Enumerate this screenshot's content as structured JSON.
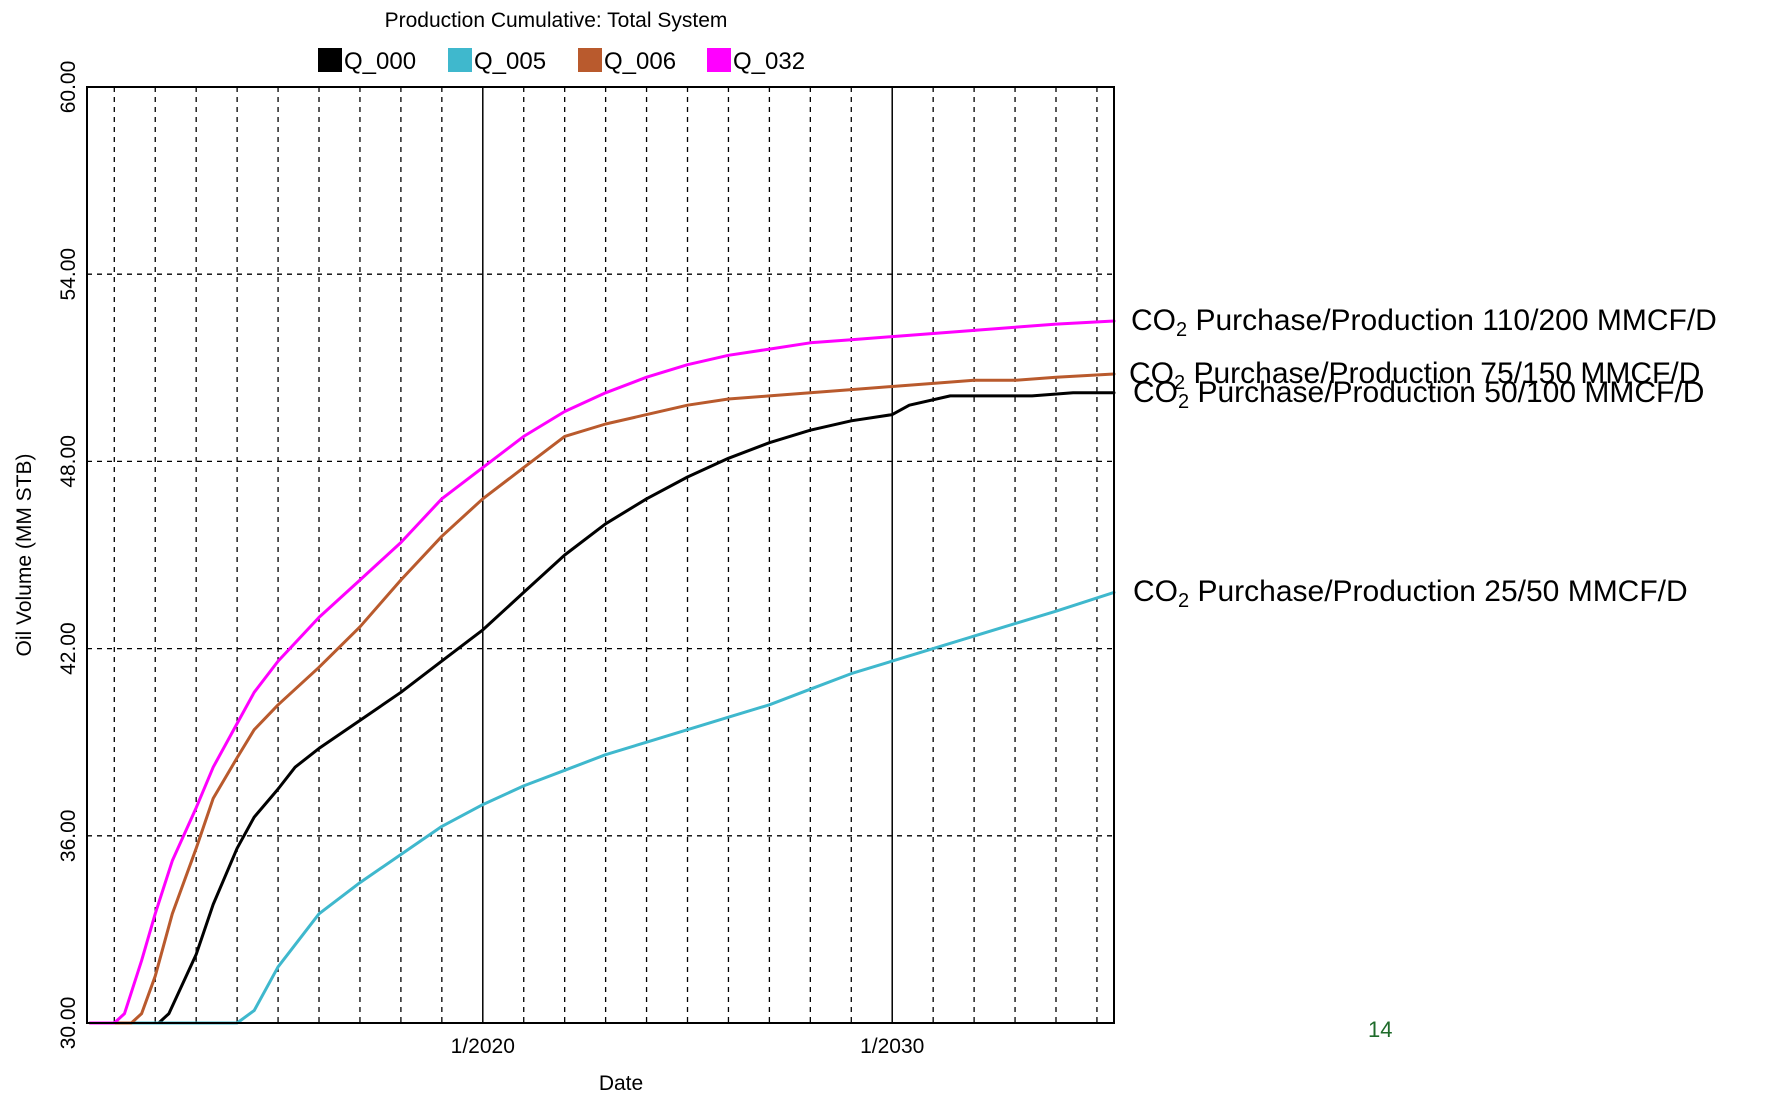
{
  "chart_data": {
    "type": "line",
    "title": "Production Cumulative: Total System",
    "xlabel": "Date",
    "ylabel": "Oil Volume (MM STB)",
    "xlim": [
      "2010-05",
      "2035-06"
    ],
    "ylim": [
      30,
      60
    ],
    "y_ticks": [
      "30.00",
      "36.00",
      "42.00",
      "48.00",
      "54.00",
      "60.00"
    ],
    "x_tick_labels": [
      {
        "date": "2020-01",
        "label": "1/2020"
      },
      {
        "date": "2030-01",
        "label": "1/2030"
      }
    ],
    "grid": true,
    "legend_position": "top",
    "series": [
      {
        "name": "Q_000",
        "color": "#000000",
        "points": [
          [
            "2010-06",
            30.0
          ],
          [
            "2011-01",
            30.0
          ],
          [
            "2012-02",
            30.0
          ],
          [
            "2012-05",
            30.3
          ],
          [
            "2013-01",
            32.2
          ],
          [
            "2013-06",
            33.8
          ],
          [
            "2014-01",
            35.6
          ],
          [
            "2014-06",
            36.6
          ],
          [
            "2015-01",
            37.5
          ],
          [
            "2015-06",
            38.2
          ],
          [
            "2016-01",
            38.8
          ],
          [
            "2017-01",
            39.7
          ],
          [
            "2018-01",
            40.6
          ],
          [
            "2019-01",
            41.6
          ],
          [
            "2020-01",
            42.6
          ],
          [
            "2021-01",
            43.8
          ],
          [
            "2022-01",
            45.0
          ],
          [
            "2023-01",
            46.0
          ],
          [
            "2024-01",
            46.8
          ],
          [
            "2025-01",
            47.5
          ],
          [
            "2026-01",
            48.1
          ],
          [
            "2027-01",
            48.6
          ],
          [
            "2028-01",
            49.0
          ],
          [
            "2029-01",
            49.3
          ],
          [
            "2030-01",
            49.5
          ],
          [
            "2030-06",
            49.8
          ],
          [
            "2031-06",
            50.1
          ],
          [
            "2032-06",
            50.1
          ],
          [
            "2033-06",
            50.1
          ],
          [
            "2034-06",
            50.2
          ],
          [
            "2035-06",
            50.2
          ]
        ]
      },
      {
        "name": "Q_005",
        "color": "#3fb8cd",
        "points": [
          [
            "2010-06",
            30.0
          ],
          [
            "2012-01",
            30.0
          ],
          [
            "2014-01",
            30.0
          ],
          [
            "2014-06",
            30.4
          ],
          [
            "2015-01",
            31.8
          ],
          [
            "2016-01",
            33.5
          ],
          [
            "2017-01",
            34.5
          ],
          [
            "2018-01",
            35.4
          ],
          [
            "2019-01",
            36.3
          ],
          [
            "2020-01",
            37.0
          ],
          [
            "2021-01",
            37.6
          ],
          [
            "2022-01",
            38.1
          ],
          [
            "2023-01",
            38.6
          ],
          [
            "2024-01",
            39.0
          ],
          [
            "2025-01",
            39.4
          ],
          [
            "2026-01",
            39.8
          ],
          [
            "2027-01",
            40.2
          ],
          [
            "2028-01",
            40.7
          ],
          [
            "2029-01",
            41.2
          ],
          [
            "2030-01",
            41.6
          ],
          [
            "2031-01",
            42.0
          ],
          [
            "2032-01",
            42.4
          ],
          [
            "2033-01",
            42.8
          ],
          [
            "2034-01",
            43.2
          ],
          [
            "2035-06",
            43.8
          ]
        ]
      },
      {
        "name": "Q_006",
        "color": "#b95a2d",
        "points": [
          [
            "2010-06",
            30.0
          ],
          [
            "2011-06",
            30.0
          ],
          [
            "2011-09",
            30.3
          ],
          [
            "2012-01",
            31.5
          ],
          [
            "2012-06",
            33.5
          ],
          [
            "2013-01",
            35.6
          ],
          [
            "2013-06",
            37.2
          ],
          [
            "2014-01",
            38.5
          ],
          [
            "2014-06",
            39.4
          ],
          [
            "2015-01",
            40.2
          ],
          [
            "2016-01",
            41.4
          ],
          [
            "2017-01",
            42.7
          ],
          [
            "2018-01",
            44.2
          ],
          [
            "2019-01",
            45.6
          ],
          [
            "2020-01",
            46.8
          ],
          [
            "2021-01",
            47.8
          ],
          [
            "2022-01",
            48.8
          ],
          [
            "2023-01",
            49.2
          ],
          [
            "2024-01",
            49.5
          ],
          [
            "2025-01",
            49.8
          ],
          [
            "2026-01",
            50.0
          ],
          [
            "2027-01",
            50.1
          ],
          [
            "2028-01",
            50.2
          ],
          [
            "2029-01",
            50.3
          ],
          [
            "2030-01",
            50.4
          ],
          [
            "2031-01",
            50.5
          ],
          [
            "2032-01",
            50.6
          ],
          [
            "2033-01",
            50.6
          ],
          [
            "2034-01",
            50.7
          ],
          [
            "2035-06",
            50.8
          ]
        ]
      },
      {
        "name": "Q_032",
        "color": "#ff00ff",
        "points": [
          [
            "2010-06",
            30.0
          ],
          [
            "2011-01",
            30.0
          ],
          [
            "2011-04",
            30.3
          ],
          [
            "2011-09",
            32.0
          ],
          [
            "2012-01",
            33.5
          ],
          [
            "2012-06",
            35.2
          ],
          [
            "2013-01",
            36.9
          ],
          [
            "2013-06",
            38.2
          ],
          [
            "2014-01",
            39.6
          ],
          [
            "2014-06",
            40.6
          ],
          [
            "2015-01",
            41.6
          ],
          [
            "2016-01",
            43.0
          ],
          [
            "2017-01",
            44.2
          ],
          [
            "2018-01",
            45.4
          ],
          [
            "2019-01",
            46.8
          ],
          [
            "2020-01",
            47.8
          ],
          [
            "2021-01",
            48.8
          ],
          [
            "2022-01",
            49.6
          ],
          [
            "2023-01",
            50.2
          ],
          [
            "2024-01",
            50.7
          ],
          [
            "2025-01",
            51.1
          ],
          [
            "2026-01",
            51.4
          ],
          [
            "2027-01",
            51.6
          ],
          [
            "2028-01",
            51.8
          ],
          [
            "2029-01",
            51.9
          ],
          [
            "2030-01",
            52.0
          ],
          [
            "2031-01",
            52.1
          ],
          [
            "2032-01",
            52.2
          ],
          [
            "2033-01",
            52.3
          ],
          [
            "2034-01",
            52.4
          ],
          [
            "2035-06",
            52.5
          ]
        ]
      }
    ],
    "annotations": [
      {
        "series": "Q_032",
        "prefix": "CO",
        "subscript": "2",
        "text": " Purchase/Production 110/200 MMCF/D"
      },
      {
        "series": "Q_006",
        "prefix": "CO",
        "subscript": "2",
        "text": " Purchase/Production 75/150 MMCF/D"
      },
      {
        "series": "Q_000",
        "prefix": "CO",
        "subscript": "2",
        "text": " Purchase/Production 50/100 MMCF/D"
      },
      {
        "series": "Q_005",
        "prefix": "CO",
        "subscript": "2",
        "text": " Purchase/Production 25/50 MMCF/D"
      }
    ]
  },
  "page_number": "14"
}
